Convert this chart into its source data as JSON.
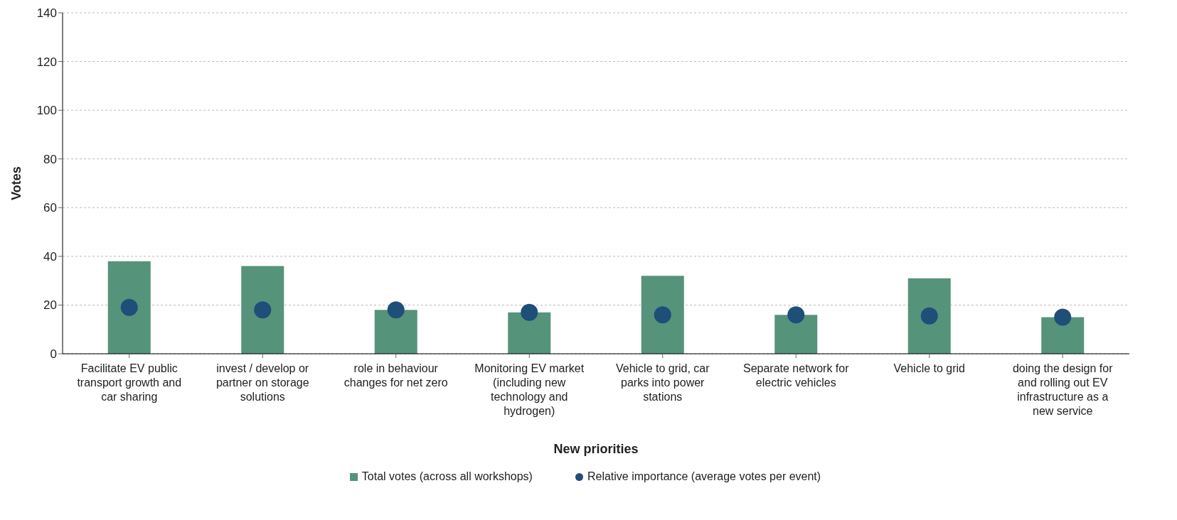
{
  "chart_data": {
    "type": "bar",
    "xlabel": "New priorities",
    "ylabel": "Votes",
    "categories": [
      "Facilitate EV public transport growth and car sharing",
      "invest / develop or partner on storage solutions",
      "role in behaviour changes for net zero",
      "Monitoring EV market (including new technology and hydrogen)",
      "Vehicle to grid, car parks into power stations",
      "Separate network for electric vehicles",
      "Vehicle to grid",
      "doing the design for and rolling out EV infrastructure as a new service"
    ],
    "series": [
      {
        "name": "Total votes (across all workshops)",
        "color": "#55937a",
        "values": [
          38,
          36,
          18,
          17,
          32,
          16,
          31,
          15
        ]
      },
      {
        "name": "Relative importance (average votes per event)",
        "type": "scatter",
        "color": "#1f4e79",
        "values": [
          19,
          18,
          18,
          17,
          16,
          16,
          15.5,
          15
        ]
      }
    ],
    "ylim": [
      0,
      140
    ],
    "yticks": [
      0,
      20,
      40,
      60,
      80,
      100,
      120,
      140
    ],
    "grid": "y",
    "legend": "bottom",
    "marker": "circle"
  }
}
